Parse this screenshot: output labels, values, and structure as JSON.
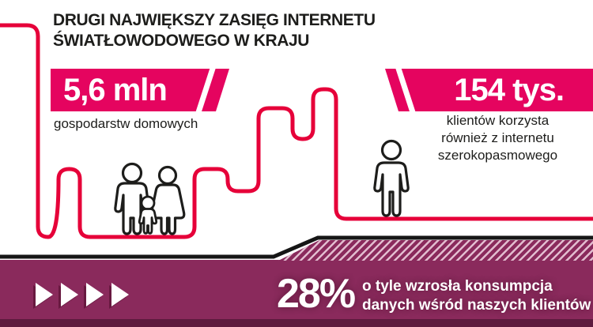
{
  "header": {
    "title_line1": "DRUGI NAJWIĘKSZY ZASIĘG INTERNETU",
    "title_line2": "ŚWIATŁOWODOWEGO W KRAJU"
  },
  "stat_left": {
    "value": "5,6 mln",
    "caption": "gospodarstw domowych"
  },
  "stat_right": {
    "value": "154 tys.",
    "caption_lines": [
      "klientów korzysta",
      "również z internetu",
      "szerokopasmowego"
    ]
  },
  "band": {
    "value": "28%",
    "caption_lines": [
      "o tyle wzrosła konsumpcja",
      "danych wśród naszych klientów"
    ],
    "arrow_count": 4
  },
  "icons": {
    "skyline": "city-skyline-line",
    "family": "family-icon",
    "person": "person-icon",
    "arrow": "arrow-right-icon"
  },
  "colors": {
    "banner_magenta": "#e5045f",
    "skyline_red": "#e60039",
    "band_plum": "#8a2a5c",
    "band_dark_strip": "#5e1b3e",
    "hatch_stripe": "#e2bccf",
    "outline_black": "#1d1d1b",
    "text_white": "#ffffff"
  }
}
